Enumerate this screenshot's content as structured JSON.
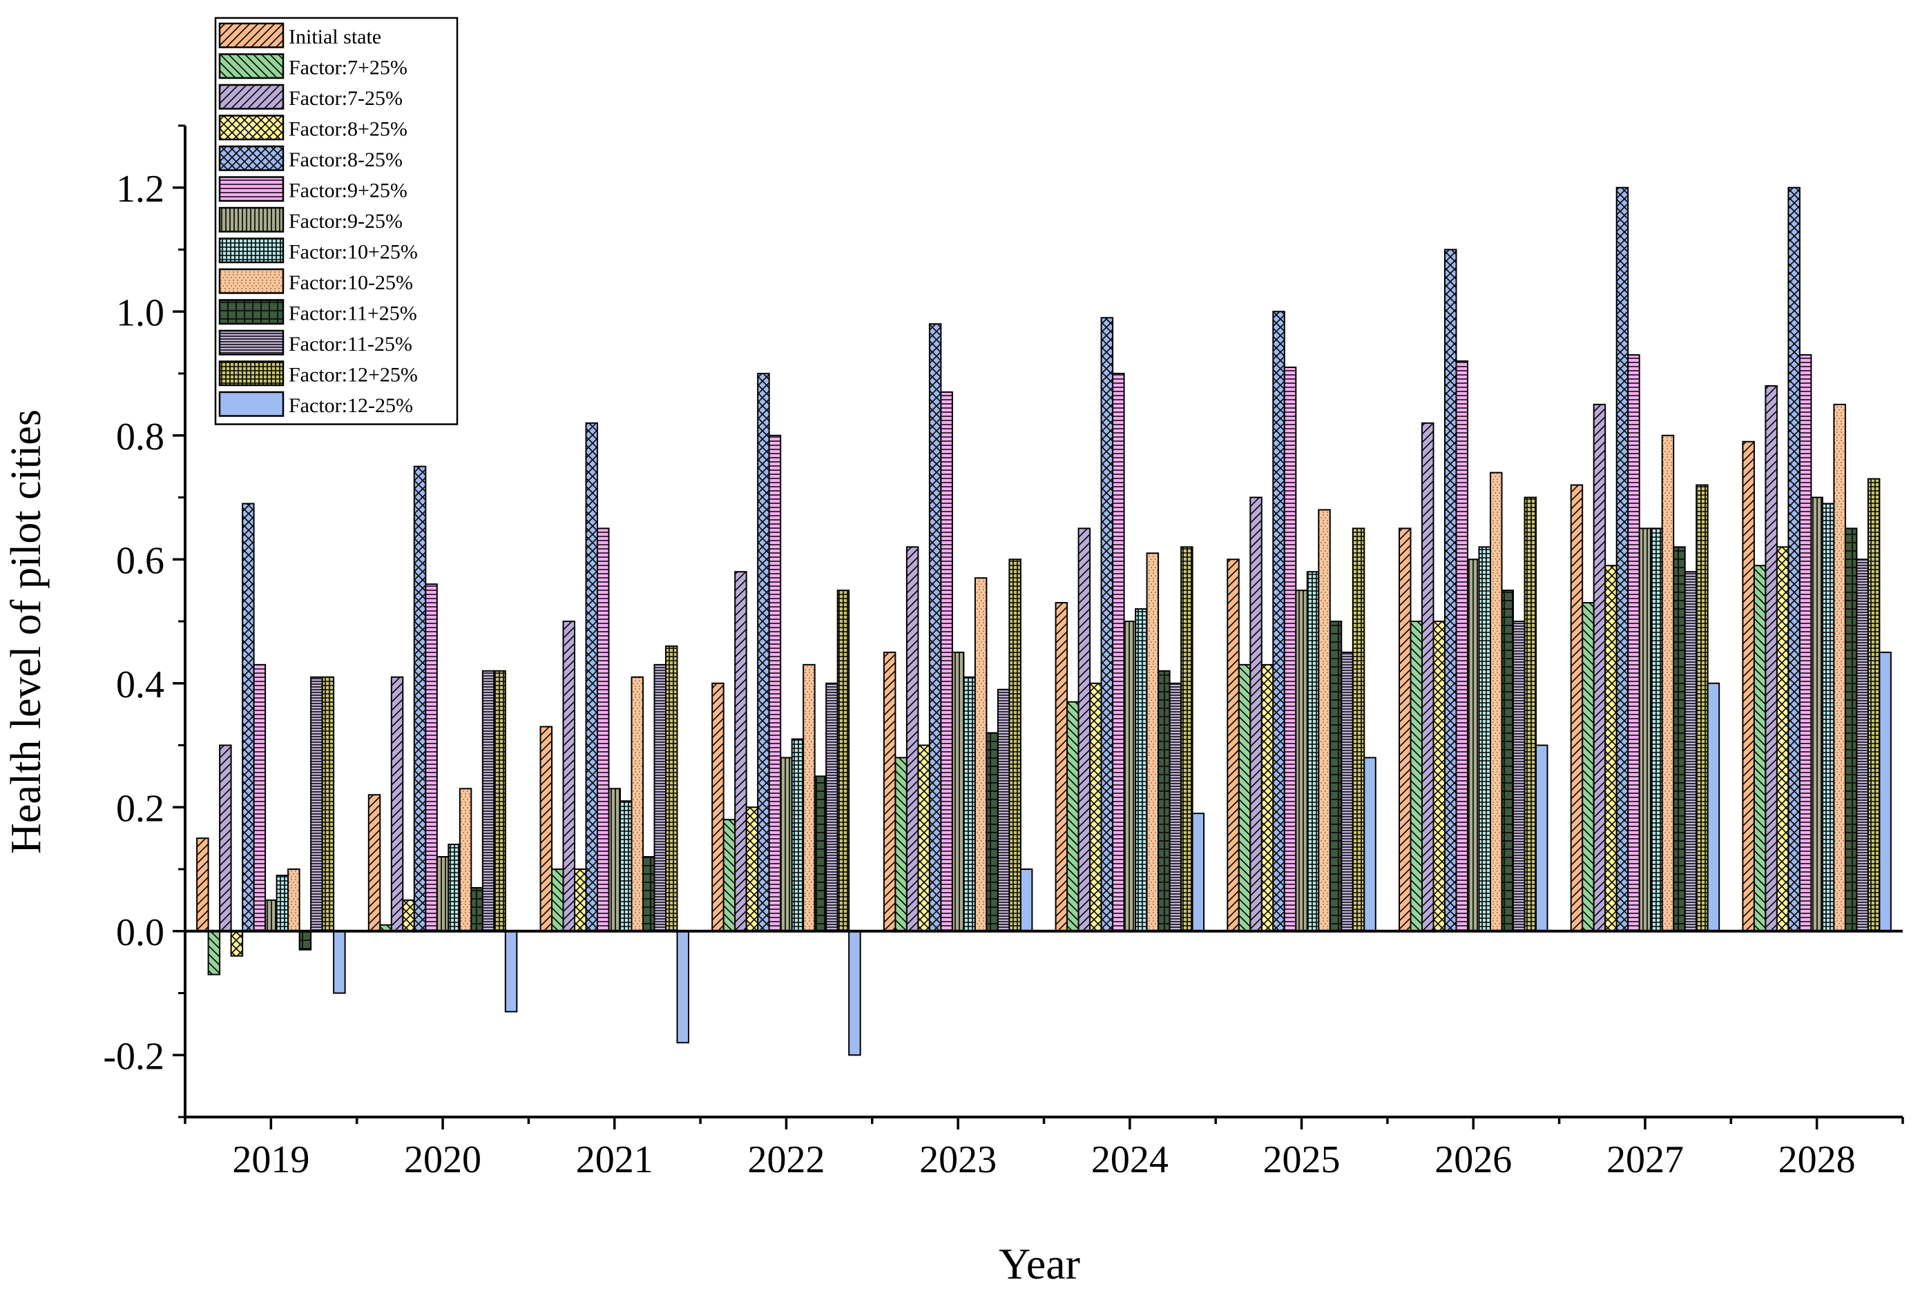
{
  "chart_data": {
    "type": "bar",
    "title": "",
    "xlabel": "Year",
    "ylabel": "Health level of pilot cities",
    "ylim": [
      -0.3,
      1.3
    ],
    "yticks": [
      -0.2,
      0.0,
      0.2,
      0.4,
      0.6,
      0.8,
      1.0,
      1.2
    ],
    "ytick_labels": [
      "-0.2",
      "0.0",
      "0.2",
      "0.4",
      "0.6",
      "0.8",
      "1.0",
      "1.2"
    ],
    "legend_position": "top-left",
    "categories": [
      "2019",
      "2020",
      "2021",
      "2022",
      "2023",
      "2024",
      "2025",
      "2026",
      "2027",
      "2028"
    ],
    "series": [
      {
        "name": "Initial state",
        "color": "#f7b98a",
        "pattern": "diag-right",
        "values": [
          0.15,
          0.22,
          0.33,
          0.4,
          0.45,
          0.53,
          0.6,
          0.65,
          0.72,
          0.79
        ]
      },
      {
        "name": "Factor:7+25%",
        "color": "#94d39a",
        "pattern": "diag-left",
        "values": [
          -0.07,
          0.01,
          0.1,
          0.18,
          0.28,
          0.37,
          0.43,
          0.5,
          0.53,
          0.59
        ]
      },
      {
        "name": "Factor:7-25%",
        "color": "#b9a9d6",
        "pattern": "diag-right",
        "values": [
          0.3,
          0.41,
          0.5,
          0.58,
          0.62,
          0.65,
          0.7,
          0.82,
          0.85,
          0.88
        ]
      },
      {
        "name": "Factor:8+25%",
        "color": "#fff39a",
        "pattern": "cross-diag",
        "values": [
          -0.04,
          0.05,
          0.1,
          0.2,
          0.3,
          0.4,
          0.43,
          0.5,
          0.59,
          0.62
        ]
      },
      {
        "name": "Factor:8-25%",
        "color": "#9cb7ea",
        "pattern": "cross-diag",
        "values": [
          0.69,
          0.75,
          0.82,
          0.9,
          0.98,
          0.99,
          1.0,
          1.1,
          1.2,
          1.2
        ]
      },
      {
        "name": "Factor:9+25%",
        "color": "#f4aef0",
        "pattern": "horiz",
        "values": [
          0.43,
          0.56,
          0.65,
          0.8,
          0.87,
          0.9,
          0.91,
          0.92,
          0.93,
          0.93
        ]
      },
      {
        "name": "Factor:9-25%",
        "color": "#a9ad8e",
        "pattern": "vert",
        "values": [
          0.05,
          0.12,
          0.23,
          0.28,
          0.45,
          0.5,
          0.55,
          0.6,
          0.65,
          0.7
        ]
      },
      {
        "name": "Factor:10+25%",
        "color": "#b5e6e6",
        "pattern": "grid",
        "values": [
          0.09,
          0.14,
          0.21,
          0.31,
          0.41,
          0.52,
          0.58,
          0.62,
          0.65,
          0.69
        ]
      },
      {
        "name": "Factor:10-25%",
        "color": "#f9c69c",
        "pattern": "dots",
        "values": [
          0.1,
          0.23,
          0.41,
          0.43,
          0.57,
          0.61,
          0.68,
          0.74,
          0.8,
          0.85
        ]
      },
      {
        "name": "Factor:11+25%",
        "color": "#3f5a3f",
        "pattern": "dense",
        "values": [
          -0.03,
          0.07,
          0.12,
          0.25,
          0.32,
          0.42,
          0.5,
          0.55,
          0.62,
          0.65
        ]
      },
      {
        "name": "Factor:11-25%",
        "color": "#c3b4d9",
        "pattern": "fine",
        "values": [
          0.41,
          0.42,
          0.43,
          0.4,
          0.39,
          0.4,
          0.45,
          0.5,
          0.58,
          0.6
        ]
      },
      {
        "name": "Factor:12+25%",
        "color": "#c9c470",
        "pattern": "checker",
        "values": [
          0.41,
          0.42,
          0.46,
          0.55,
          0.6,
          0.62,
          0.65,
          0.7,
          0.72,
          0.73
        ]
      },
      {
        "name": "Factor:12-25%",
        "color": "#9fbcf2",
        "pattern": "solid",
        "values": [
          -0.1,
          -0.13,
          -0.18,
          -0.2,
          0.1,
          0.19,
          0.28,
          0.3,
          0.4,
          0.45
        ]
      }
    ]
  }
}
